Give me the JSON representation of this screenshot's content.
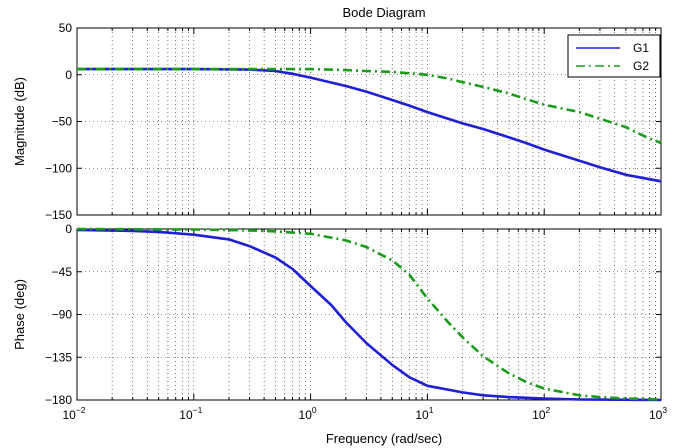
{
  "chart_data": {
    "type": "line",
    "title": "Bode Diagram",
    "xlabel": "Frequency  (rad/sec)",
    "x_scale": "log",
    "xlim": [
      0.01,
      1000
    ],
    "x_ticks": [
      {
        "value": 0.01,
        "base": "10",
        "exp": "−2"
      },
      {
        "value": 0.1,
        "base": "10",
        "exp": "−1"
      },
      {
        "value": 1,
        "base": "10",
        "exp": "0"
      },
      {
        "value": 10,
        "base": "10",
        "exp": "1"
      },
      {
        "value": 100,
        "base": "10",
        "exp": "2"
      },
      {
        "value": 1000,
        "base": "10",
        "exp": "3"
      }
    ],
    "grid": true,
    "legend": {
      "position": "top-right",
      "entries": [
        {
          "name": "G1",
          "color": "#1f1fd6",
          "style": "solid"
        },
        {
          "name": "G2",
          "color": "#1a9c1a",
          "style": "dash-dot"
        }
      ]
    },
    "panels": [
      {
        "name": "magnitude",
        "ylabel": "Magnitude (dB)",
        "ylim": [
          -150,
          50
        ],
        "y_ticks": [
          {
            "value": 50,
            "label": "50"
          },
          {
            "value": 0,
            "label": "0"
          },
          {
            "value": -50,
            "label": "−50"
          },
          {
            "value": -100,
            "label": "−100"
          },
          {
            "value": -150,
            "label": "−150"
          }
        ],
        "series": [
          {
            "name": "G1",
            "color": "#1f1fd6",
            "style": "solid",
            "points": [
              [
                0.01,
                6
              ],
              [
                0.1,
                6
              ],
              [
                0.3,
                5.5
              ],
              [
                0.5,
                4
              ],
              [
                0.7,
                1
              ],
              [
                1,
                -3
              ],
              [
                2,
                -12
              ],
              [
                3,
                -18
              ],
              [
                5,
                -27
              ],
              [
                7,
                -33
              ],
              [
                10,
                -40
              ],
              [
                20,
                -52
              ],
              [
                30,
                -58
              ],
              [
                50,
                -67
              ],
              [
                70,
                -73
              ],
              [
                100,
                -80
              ],
              [
                200,
                -92
              ],
              [
                300,
                -99
              ],
              [
                500,
                -107
              ],
              [
                1000,
                -114
              ]
            ]
          },
          {
            "name": "G2",
            "color": "#1a9c1a",
            "style": "dash-dot",
            "points": [
              [
                0.01,
                6
              ],
              [
                0.1,
                6
              ],
              [
                0.5,
                6
              ],
              [
                1,
                6
              ],
              [
                2,
                5
              ],
              [
                3,
                4
              ],
              [
                5,
                3
              ],
              [
                7,
                1.5
              ],
              [
                10,
                0
              ],
              [
                15,
                -4
              ],
              [
                20,
                -8
              ],
              [
                30,
                -13
              ],
              [
                50,
                -20
              ],
              [
                70,
                -26
              ],
              [
                100,
                -32
              ],
              [
                200,
                -40
              ],
              [
                300,
                -47
              ],
              [
                500,
                -56
              ],
              [
                700,
                -65
              ],
              [
                1000,
                -73
              ]
            ]
          }
        ]
      },
      {
        "name": "phase",
        "ylabel": "Phase (deg)",
        "ylim": [
          -180,
          0
        ],
        "y_ticks": [
          {
            "value": 0,
            "label": "0"
          },
          {
            "value": -45,
            "label": "−45"
          },
          {
            "value": -90,
            "label": "−90"
          },
          {
            "value": -135,
            "label": "−135"
          },
          {
            "value": -180,
            "label": "−180"
          }
        ],
        "series": [
          {
            "name": "G1",
            "color": "#1f1fd6",
            "style": "solid",
            "points": [
              [
                0.01,
                -1
              ],
              [
                0.03,
                -2
              ],
              [
                0.05,
                -3
              ],
              [
                0.1,
                -6
              ],
              [
                0.2,
                -11
              ],
              [
                0.3,
                -18
              ],
              [
                0.5,
                -30
              ],
              [
                0.7,
                -42
              ],
              [
                1,
                -60
              ],
              [
                1.5,
                -80
              ],
              [
                2,
                -98
              ],
              [
                3,
                -120
              ],
              [
                5,
                -143
              ],
              [
                7,
                -156
              ],
              [
                10,
                -165
              ],
              [
                20,
                -172
              ],
              [
                30,
                -175
              ],
              [
                50,
                -177
              ],
              [
                100,
                -178.5
              ],
              [
                200,
                -179.5
              ],
              [
                1000,
                -180
              ]
            ]
          },
          {
            "name": "G2",
            "color": "#1a9c1a",
            "style": "dash-dot",
            "points": [
              [
                0.01,
                0
              ],
              [
                0.1,
                -0.5
              ],
              [
                0.3,
                -1.5
              ],
              [
                0.5,
                -2.5
              ],
              [
                1,
                -5
              ],
              [
                2,
                -12
              ],
              [
                3,
                -19
              ],
              [
                5,
                -33
              ],
              [
                7,
                -48
              ],
              [
                10,
                -73
              ],
              [
                15,
                -98
              ],
              [
                20,
                -114
              ],
              [
                30,
                -134
              ],
              [
                50,
                -152
              ],
              [
                70,
                -161
              ],
              [
                100,
                -168
              ],
              [
                200,
                -175
              ],
              [
                300,
                -177
              ],
              [
                500,
                -178.5
              ],
              [
                1000,
                -179.5
              ]
            ]
          }
        ]
      }
    ]
  }
}
